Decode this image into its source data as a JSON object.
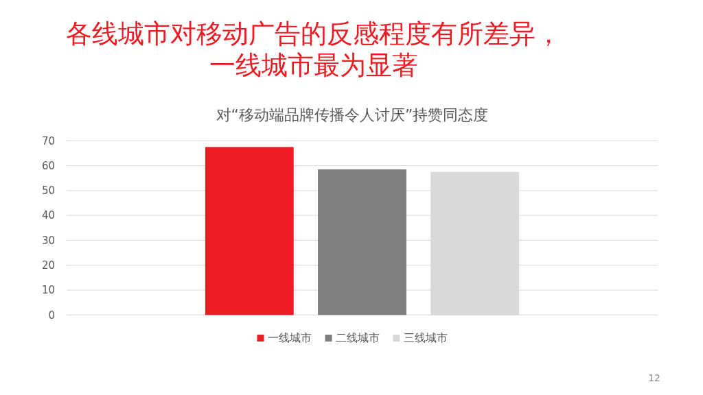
{
  "chart_data": {
    "type": "bar",
    "title": "各线城市对移动广告的反感程度有所差异，一线城市最为显著",
    "subtitle": "对“移动端品牌传播令人讨厌”持赞同态度",
    "categories": [
      null
    ],
    "series": [
      {
        "name": "一线城市",
        "color": "#ed1c24",
        "values": [
          67.5
        ]
      },
      {
        "name": "二线城市",
        "color": "#7f7f7f",
        "values": [
          58.5
        ]
      },
      {
        "name": "三线城市",
        "color": "#d9d9d9",
        "values": [
          57.5
        ]
      }
    ],
    "ylim": [
      0,
      70
    ],
    "yticks": [
      0,
      10,
      20,
      30,
      40,
      50,
      60,
      70
    ],
    "grid": "y",
    "legend": "bottom",
    "tick_labels": "y",
    "annotations": [
      "12"
    ]
  }
}
